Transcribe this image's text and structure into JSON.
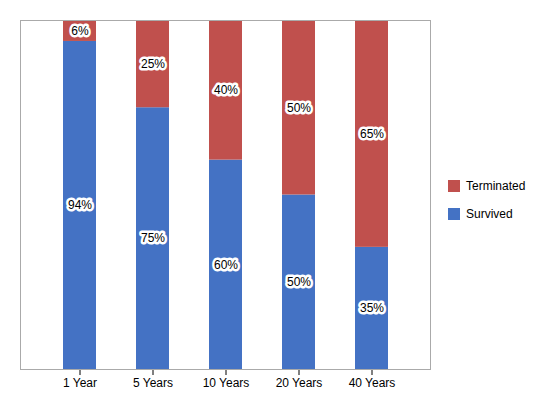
{
  "chart_data": {
    "type": "bar",
    "stacked": true,
    "categories": [
      "1 Year",
      "5 Years",
      "10 Years",
      "20 Years",
      "40 Years"
    ],
    "series": [
      {
        "name": "Survived",
        "color": "#4472C4",
        "values": [
          94,
          75,
          60,
          50,
          35
        ],
        "value_labels": [
          "94%",
          "75%",
          "60%",
          "50%",
          "35%"
        ]
      },
      {
        "name": "Terminated",
        "color": "#C0504D",
        "values": [
          6,
          25,
          40,
          50,
          65
        ],
        "value_labels": [
          "6%",
          "25%",
          "40%",
          "50%",
          "65%"
        ]
      }
    ],
    "ylim": [
      0,
      100
    ],
    "yticks": [],
    "data_labels": true,
    "tick_labels": "x",
    "legend": "right",
    "grid": false
  }
}
